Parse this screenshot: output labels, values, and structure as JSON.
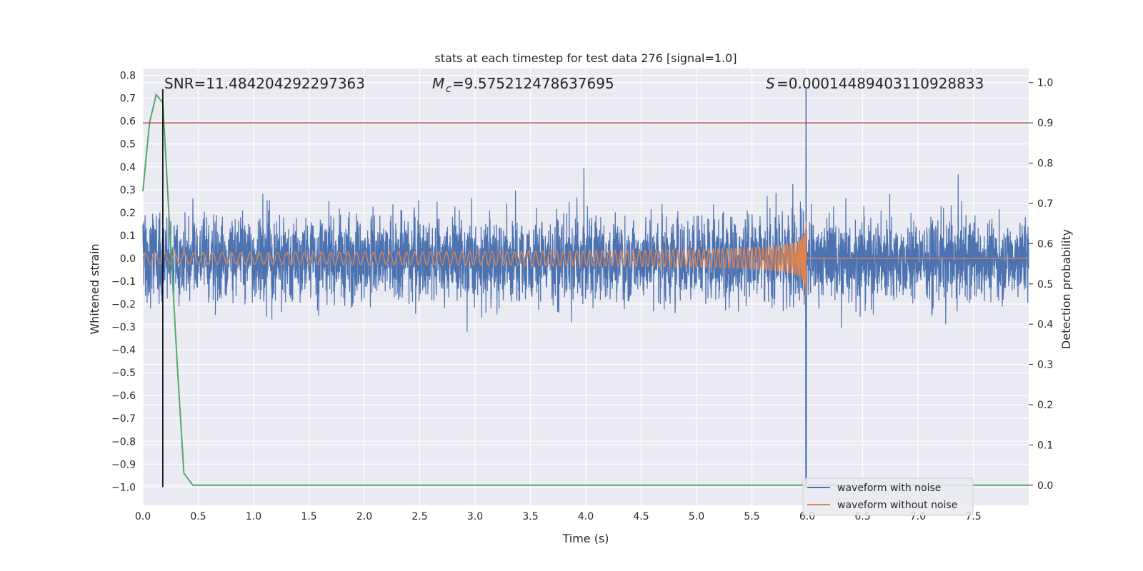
{
  "chart_data": {
    "type": "line",
    "title": "stats at each timestep for test data 276 [signal=1.0]",
    "xlabel": "Time (s)",
    "ylabel": "Whitened strain",
    "y2label": "Detection probability",
    "xlim": [
      0.0,
      8.0
    ],
    "ylim": [
      -1.08,
      0.83
    ],
    "y2lim": [
      -0.05,
      1.035
    ],
    "x_ticks": [
      "0.0",
      "0.5",
      "1.0",
      "1.5",
      "2.0",
      "2.5",
      "3.0",
      "3.5",
      "4.0",
      "4.5",
      "5.0",
      "5.5",
      "6.0",
      "6.5",
      "7.0",
      "7.5"
    ],
    "y_ticks": [
      "0.8",
      "0.7",
      "0.6",
      "0.5",
      "0.4",
      "0.3",
      "0.2",
      "0.1",
      "0.0",
      "−0.1",
      "−0.2",
      "−0.3",
      "−0.4",
      "−0.5",
      "−0.6",
      "−0.7",
      "−0.8",
      "−0.9",
      "−1.0"
    ],
    "y2_ticks": [
      "1.0",
      "0.9",
      "0.8",
      "0.7",
      "0.6",
      "0.5",
      "0.4",
      "0.3",
      "0.2",
      "0.1",
      "0.0"
    ],
    "grid": true,
    "legend_position": "lower-right",
    "annotations": {
      "snr": "SNR=11.484204292297363",
      "mc": "=9.575212478637695",
      "s": "=0.00014489403110928833"
    },
    "series": [
      {
        "name": "waveform with noise",
        "color": "#4c72b0",
        "axis": "left",
        "description_values": {
          "noise_band": [
            -0.14,
            0.21
          ],
          "peak_time": 5.99,
          "peak_max": 0.74,
          "peak_min": -1.0
        }
      },
      {
        "name": "waveform without noise",
        "color": "#dd8452",
        "axis": "left",
        "description_values": {
          "initial_amplitude": 0.025,
          "merger_time": 5.99,
          "max_amplitude": 0.62,
          "min_amplitude": -0.78
        }
      },
      {
        "color": "#55a868",
        "axis": "right",
        "x": [
          0.0,
          0.06,
          0.12,
          0.18,
          0.24,
          0.31,
          0.37,
          0.45,
          8.0
        ],
        "y": [
          0.73,
          0.9,
          0.97,
          0.95,
          0.65,
          0.3,
          0.03,
          0.0,
          0.0
        ]
      }
    ],
    "threshold": {
      "color": "#c44e52",
      "axis": "right",
      "value": 0.9
    },
    "marker_line": {
      "color": "#000000",
      "x": 0.18,
      "y_range": [
        -1.0,
        0.74
      ]
    }
  }
}
